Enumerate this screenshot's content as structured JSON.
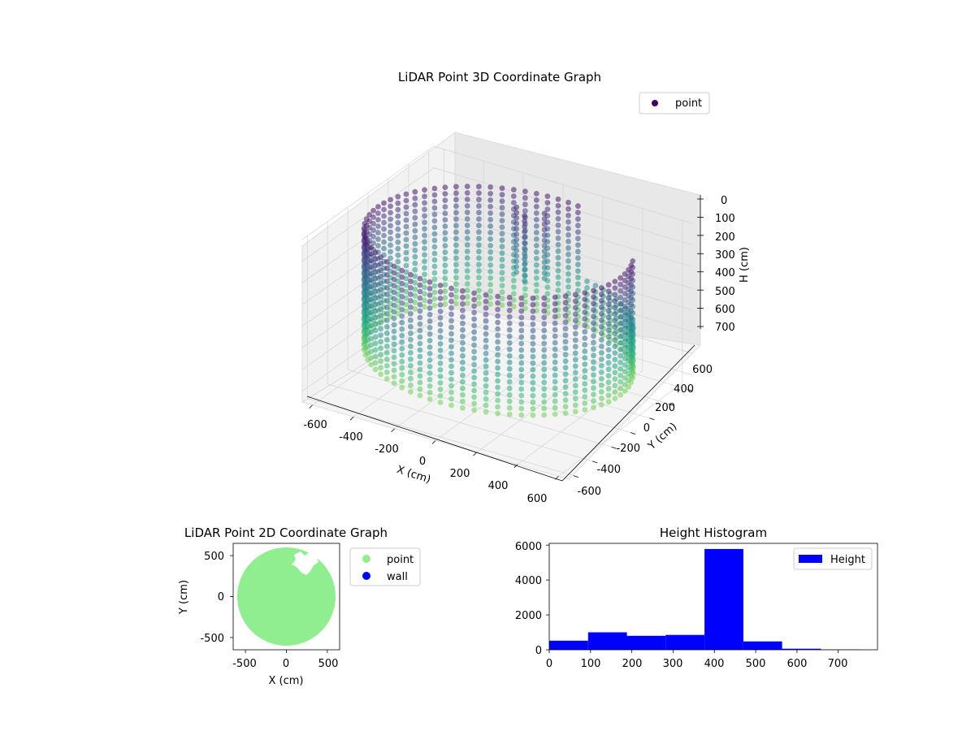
{
  "chart_data": [
    {
      "type": "scatter",
      "projection": "3d",
      "title": "LiDAR Point 3D Coordinate Graph",
      "xlabel": "X (cm)",
      "ylabel": "Y (cm)",
      "zlabel": "H (cm)",
      "xlim": [
        -650,
        650
      ],
      "ylim": [
        -650,
        650
      ],
      "zlim": [
        0,
        750
      ],
      "z_inverted": true,
      "x_ticks": [
        "-600",
        "-400",
        "-200",
        "0",
        "200",
        "400",
        "600"
      ],
      "y_ticks": [
        "-600",
        "-400",
        "-200",
        "0",
        "200",
        "400",
        "600"
      ],
      "z_ticks": [
        "0",
        "100",
        "200",
        "300",
        "400",
        "500",
        "600",
        "700"
      ],
      "colormap": "viridis",
      "legend": [
        "point"
      ],
      "legend_color": "#440154",
      "legend_position": "top-right",
      "grid": true,
      "shape": {
        "wall_radius": 600,
        "height_range": [
          50,
          600
        ],
        "description_series": [
          {
            "name": "point",
            "structure": "cylindrical wall",
            "cx": 0,
            "cy": 0,
            "r": 600,
            "h": [
              50,
              600
            ]
          }
        ]
      }
    },
    {
      "type": "scatter",
      "title": "LiDAR Point 2D Coordinate Graph",
      "xlabel": "X (cm)",
      "ylabel": "Y (cm)",
      "xlim": [
        -650,
        650
      ],
      "ylim": [
        -650,
        650
      ],
      "x_ticks": [
        "-500",
        "0",
        "500"
      ],
      "y_ticks": [
        "-500",
        "0",
        "500"
      ],
      "legend": [
        "point",
        "wall"
      ],
      "legend_colors": [
        "#90ee90",
        "#0000ff"
      ],
      "legend_position": "outside-right",
      "point_region": {
        "cx": 0,
        "cy": 0,
        "r": 600
      }
    },
    {
      "type": "bar",
      "title": "Height Histogram",
      "legend": [
        "Height"
      ],
      "legend_position": "top-right",
      "color": "#0000ff",
      "xlim": [
        0,
        795
      ],
      "ylim": [
        0,
        6100
      ],
      "x_ticks": [
        "0",
        "100",
        "200",
        "300",
        "400",
        "500",
        "600",
        "700"
      ],
      "y_ticks": [
        "0",
        "2000",
        "4000",
        "6000"
      ],
      "bins": [
        {
          "x0": 0,
          "x1": 94,
          "count": 520
        },
        {
          "x0": 94,
          "x1": 188,
          "count": 1000
        },
        {
          "x0": 188,
          "x1": 282,
          "count": 800
        },
        {
          "x0": 282,
          "x1": 376,
          "count": 850
        },
        {
          "x0": 376,
          "x1": 470,
          "count": 5780
        },
        {
          "x0": 470,
          "x1": 564,
          "count": 480
        },
        {
          "x0": 564,
          "x1": 658,
          "count": 60
        },
        {
          "x0": 658,
          "x1": 752,
          "count": 15
        }
      ]
    }
  ]
}
